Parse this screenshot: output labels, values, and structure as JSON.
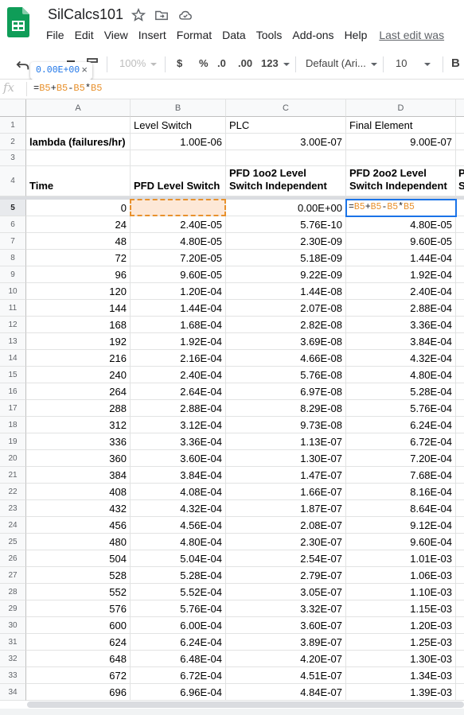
{
  "doc": {
    "title": "SilCalcs101",
    "last_edit": "Last edit was"
  },
  "menu": [
    "File",
    "Edit",
    "View",
    "Insert",
    "Format",
    "Data",
    "Tools",
    "Add-ons",
    "Help"
  ],
  "toolbar": {
    "zoom": "100%",
    "currency": "$",
    "percent": "%",
    "dec_decrease": ".0",
    "dec_increase": ".00",
    "more_formats": "123",
    "font": "Default (Ari...",
    "font_size": "10",
    "bold": "B"
  },
  "tooltip": {
    "value": "0.00E+00",
    "close": "×"
  },
  "formula_bar": {
    "fx": "fx",
    "tokens": [
      {
        "t": "=",
        "ref": false
      },
      {
        "t": "B5",
        "ref": true
      },
      {
        "t": "+",
        "ref": false
      },
      {
        "t": "B5",
        "ref": true
      },
      {
        "t": "-",
        "ref": false
      },
      {
        "t": "B5",
        "ref": true
      },
      {
        "t": "*",
        "ref": false
      },
      {
        "t": "B5",
        "ref": true
      }
    ]
  },
  "grid": {
    "columns": [
      "A",
      "B",
      "C",
      "D"
    ],
    "row1": [
      "",
      "Level Switch",
      "PLC",
      "Final Element"
    ],
    "row2": [
      "lambda (failures/hr)",
      "1.00E-06",
      "3.00E-07",
      "9.00E-07"
    ],
    "row4": [
      "Time",
      "PFD Level Switch",
      "PFD 1oo2 Level Switch Independent",
      "PFD 2oo2 Level Switch Independent",
      "P S"
    ],
    "data_rows": [
      [
        "0",
        "0.00E+00",
        "0.00E+00",
        ""
      ],
      [
        "24",
        "2.40E-05",
        "5.76E-10",
        "4.80E-05"
      ],
      [
        "48",
        "4.80E-05",
        "2.30E-09",
        "9.60E-05"
      ],
      [
        "72",
        "7.20E-05",
        "5.18E-09",
        "1.44E-04"
      ],
      [
        "96",
        "9.60E-05",
        "9.22E-09",
        "1.92E-04"
      ],
      [
        "120",
        "1.20E-04",
        "1.44E-08",
        "2.40E-04"
      ],
      [
        "144",
        "1.44E-04",
        "2.07E-08",
        "2.88E-04"
      ],
      [
        "168",
        "1.68E-04",
        "2.82E-08",
        "3.36E-04"
      ],
      [
        "192",
        "1.92E-04",
        "3.69E-08",
        "3.84E-04"
      ],
      [
        "216",
        "2.16E-04",
        "4.66E-08",
        "4.32E-04"
      ],
      [
        "240",
        "2.40E-04",
        "5.76E-08",
        "4.80E-04"
      ],
      [
        "264",
        "2.64E-04",
        "6.97E-08",
        "5.28E-04"
      ],
      [
        "288",
        "2.88E-04",
        "8.29E-08",
        "5.76E-04"
      ],
      [
        "312",
        "3.12E-04",
        "9.73E-08",
        "6.24E-04"
      ],
      [
        "336",
        "3.36E-04",
        "1.13E-07",
        "6.72E-04"
      ],
      [
        "360",
        "3.60E-04",
        "1.30E-07",
        "7.20E-04"
      ],
      [
        "384",
        "3.84E-04",
        "1.47E-07",
        "7.68E-04"
      ],
      [
        "408",
        "4.08E-04",
        "1.66E-07",
        "8.16E-04"
      ],
      [
        "432",
        "4.32E-04",
        "1.87E-07",
        "8.64E-04"
      ],
      [
        "456",
        "4.56E-04",
        "2.08E-07",
        "9.12E-04"
      ],
      [
        "480",
        "4.80E-04",
        "2.30E-07",
        "9.60E-04"
      ],
      [
        "504",
        "5.04E-04",
        "2.54E-07",
        "1.01E-03"
      ],
      [
        "528",
        "5.28E-04",
        "2.79E-07",
        "1.06E-03"
      ],
      [
        "552",
        "5.52E-04",
        "3.05E-07",
        "1.10E-03"
      ],
      [
        "576",
        "5.76E-04",
        "3.32E-07",
        "1.15E-03"
      ],
      [
        "600",
        "6.00E-04",
        "3.60E-07",
        "1.20E-03"
      ],
      [
        "624",
        "6.24E-04",
        "3.89E-07",
        "1.25E-03"
      ],
      [
        "648",
        "6.48E-04",
        "4.20E-07",
        "1.30E-03"
      ],
      [
        "672",
        "6.72E-04",
        "4.51E-07",
        "1.34E-03"
      ],
      [
        "696",
        "6.96E-04",
        "4.84E-07",
        "1.39E-03"
      ]
    ]
  },
  "colors": {
    "accent": "#1a73e8",
    "reference": "#e8912d",
    "copy_fill": "#fde8d7",
    "logo": "#0f9d58"
  }
}
